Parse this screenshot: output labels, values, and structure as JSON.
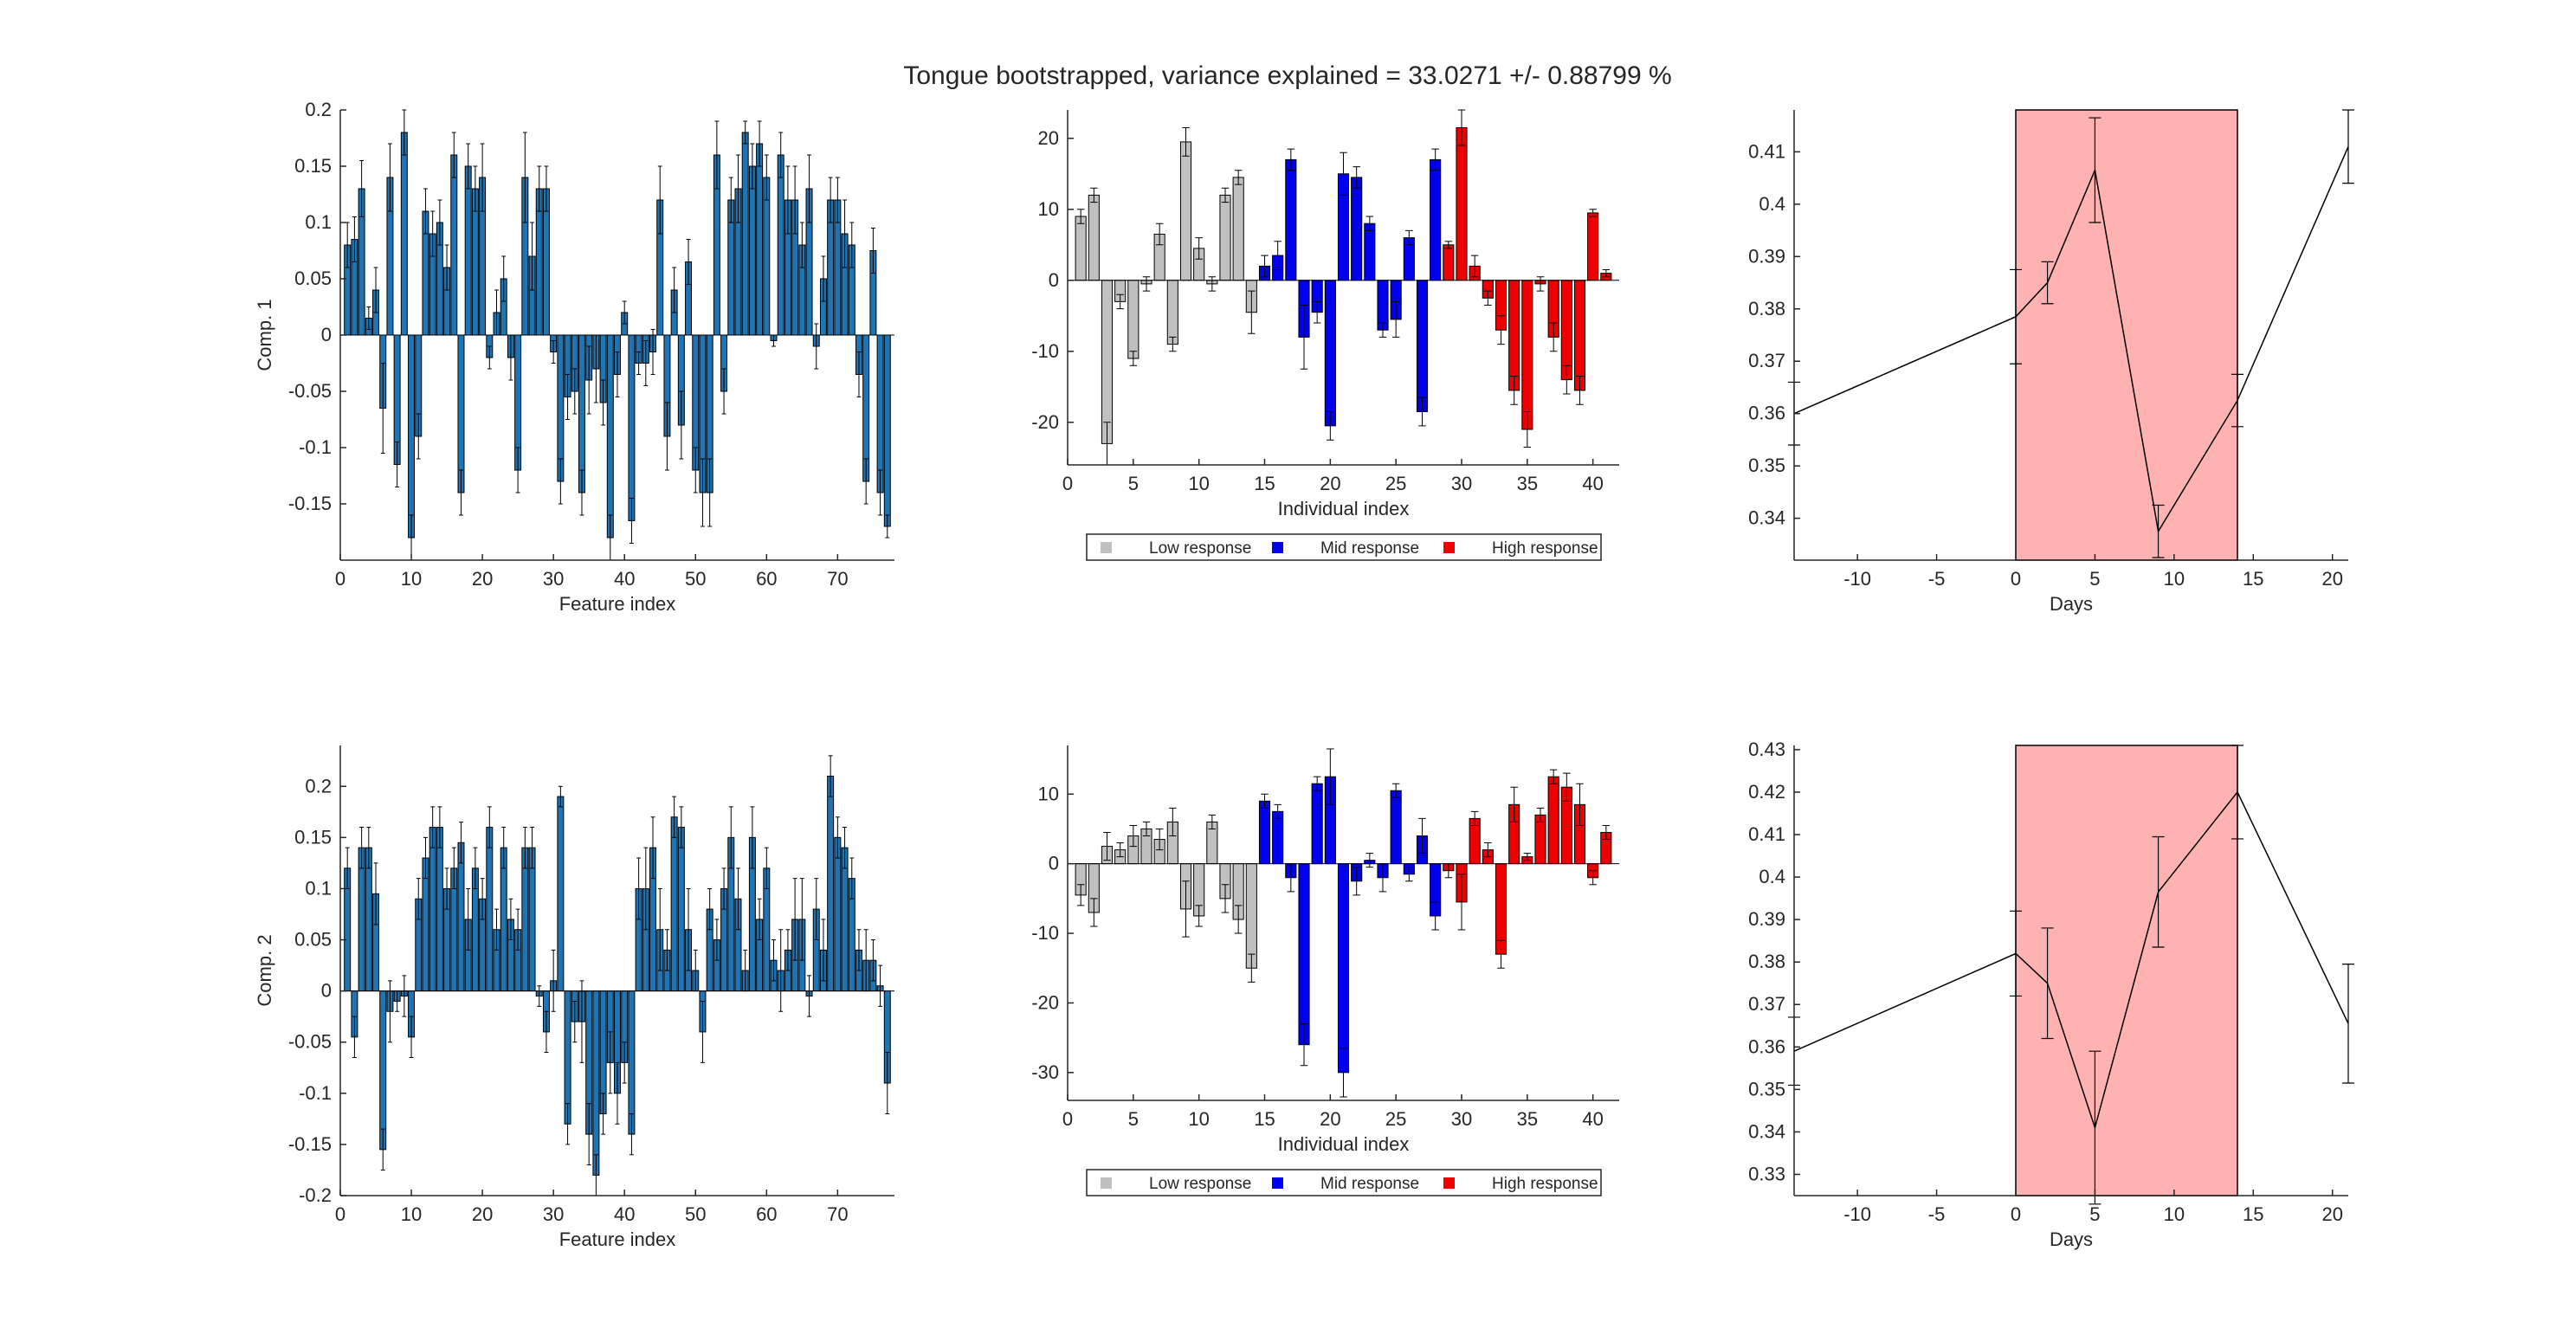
{
  "figure": {
    "title": "Tongue bootstrapped, variance explained = 33.0271 +/- 0.88799 %"
  },
  "colors": {
    "feature_bar": "#1f74b4",
    "low": "#c0c0c0",
    "mid": "#0000ee",
    "high": "#ee0000",
    "shade": "#ffb2b2"
  },
  "chart_data": [
    {
      "id": "features-comp1",
      "type": "bar",
      "xlabel": "Feature index",
      "ylabel": "Comp. 1",
      "xlim": [
        0,
        78
      ],
      "ylim": [
        -0.2,
        0.2
      ],
      "xticks": [
        0,
        10,
        20,
        30,
        40,
        50,
        60,
        70
      ],
      "xtick_labels": [
        "0",
        "10",
        "20",
        "30",
        "40",
        "50",
        "60",
        "70"
      ],
      "yticks": [
        -0.15,
        -0.1,
        -0.05,
        0,
        0.05,
        0.1,
        0.15,
        0.2
      ],
      "ytick_labels": [
        "-0.15",
        "-0.1",
        "-0.05",
        "0",
        "0.05",
        "0.1",
        "0.15",
        "0.2"
      ],
      "x": [
        1,
        2,
        3,
        4,
        5,
        6,
        7,
        8,
        9,
        10,
        11,
        12,
        13,
        14,
        15,
        16,
        17,
        18,
        19,
        20,
        21,
        22,
        23,
        24,
        25,
        26,
        27,
        28,
        29,
        30,
        31,
        32,
        33,
        34,
        35,
        36,
        37,
        38,
        39,
        40,
        41,
        42,
        43,
        44,
        45,
        46,
        47,
        48,
        49,
        50,
        51,
        52,
        53,
        54,
        55,
        56,
        57,
        58,
        59,
        60,
        61,
        62,
        63,
        64,
        65,
        66,
        67,
        68,
        69,
        70,
        71,
        72,
        73,
        74,
        75,
        76,
        77
      ],
      "values": [
        0.08,
        0.085,
        0.13,
        0.015,
        0.04,
        -0.065,
        0.14,
        -0.115,
        0.18,
        -0.18,
        -0.09,
        0.11,
        0.09,
        0.1,
        0.06,
        0.16,
        -0.14,
        0.15,
        0.13,
        0.14,
        -0.02,
        0.02,
        0.05,
        -0.02,
        -0.12,
        0.14,
        0.07,
        0.13,
        0.13,
        -0.015,
        -0.13,
        -0.055,
        -0.05,
        -0.14,
        -0.04,
        -0.03,
        -0.06,
        -0.18,
        -0.035,
        0.02,
        -0.165,
        -0.025,
        -0.025,
        -0.015,
        0.12,
        -0.09,
        0.04,
        -0.08,
        0.065,
        -0.12,
        -0.14,
        -0.14,
        0.16,
        -0.05,
        0.12,
        0.13,
        0.18,
        0.15,
        0.17,
        0.14,
        -0.005,
        0.16,
        0.12,
        0.12,
        0.08,
        0.13,
        -0.01,
        0.05,
        0.12,
        0.12,
        0.09,
        0.08,
        -0.035,
        -0.13,
        0.075,
        -0.14,
        -0.17
      ],
      "errors": [
        0.02,
        0.02,
        0.025,
        0.01,
        0.02,
        0.04,
        0.03,
        0.02,
        0.02,
        0.02,
        0.02,
        0.02,
        0.02,
        0.02,
        0.02,
        0.02,
        0.02,
        0.02,
        0.02,
        0.03,
        0.01,
        0.02,
        0.02,
        0.02,
        0.02,
        0.04,
        0.03,
        0.02,
        0.02,
        0.01,
        0.02,
        0.02,
        0.02,
        0.02,
        0.03,
        0.03,
        0.02,
        0.02,
        0.02,
        0.01,
        0.02,
        0.01,
        0.02,
        0.02,
        0.03,
        0.03,
        0.02,
        0.03,
        0.02,
        0.02,
        0.03,
        0.03,
        0.03,
        0.02,
        0.02,
        0.03,
        0.01,
        0.02,
        0.02,
        0.02,
        0.005,
        0.02,
        0.03,
        0.03,
        0.02,
        0.03,
        0.02,
        0.02,
        0.02,
        0.02,
        0.03,
        0.02,
        0.02,
        0.02,
        0.02,
        0.02,
        0.01
      ]
    },
    {
      "id": "individuals-comp1",
      "type": "bar",
      "xlabel": "Individual index",
      "ylabel": "",
      "xlim": [
        0,
        42
      ],
      "ylim": [
        -26,
        24
      ],
      "xticks": [
        0,
        5,
        10,
        15,
        20,
        25,
        30,
        35,
        40
      ],
      "xtick_labels": [
        "0",
        "5",
        "10",
        "15",
        "20",
        "25",
        "30",
        "35",
        "40"
      ],
      "yticks": [
        -20,
        -10,
        0,
        10,
        20
      ],
      "ytick_labels": [
        "-20",
        "-10",
        "0",
        "10",
        "20"
      ],
      "x": [
        1,
        2,
        3,
        4,
        5,
        6,
        7,
        8,
        9,
        10,
        11,
        12,
        13,
        14,
        15,
        16,
        17,
        18,
        19,
        20,
        21,
        22,
        23,
        24,
        25,
        26,
        27,
        28,
        29,
        30,
        31,
        32,
        33,
        34,
        35,
        36,
        37,
        38,
        39,
        40,
        41
      ],
      "values": [
        9,
        12,
        -23,
        -3,
        -11,
        -0.5,
        6.5,
        -9,
        19.5,
        4.5,
        -0.5,
        12,
        14.5,
        -4.5,
        2,
        3.5,
        17,
        -8,
        -4.5,
        -20.5,
        15,
        14.5,
        8,
        -7,
        -5.5,
        6,
        -18.5,
        17,
        5,
        21.5,
        2,
        -2.5,
        -7,
        -15.5,
        -21,
        -0.5,
        -8,
        -14,
        -15.5,
        9.5,
        1
      ],
      "errors": [
        1,
        1,
        3,
        1,
        1,
        1,
        1.5,
        1,
        2,
        1.5,
        1,
        1,
        1,
        3,
        1.5,
        2,
        1.5,
        4.5,
        1.5,
        2,
        3,
        1.5,
        1,
        1,
        2.5,
        1,
        2,
        1.5,
        0.5,
        2.5,
        1.5,
        1,
        2,
        2,
        2.5,
        1,
        2,
        2,
        2,
        0.5,
        0.5
      ],
      "groups": [
        "low",
        "low",
        "low",
        "low",
        "low",
        "low",
        "low",
        "low",
        "low",
        "low",
        "low",
        "low",
        "low",
        "low",
        "mid",
        "mid",
        "mid",
        "mid",
        "mid",
        "mid",
        "mid",
        "mid",
        "mid",
        "mid",
        "mid",
        "mid",
        "mid",
        "mid",
        "high",
        "high",
        "high",
        "high",
        "high",
        "high",
        "high",
        "high",
        "high",
        "high",
        "high",
        "high",
        "high"
      ],
      "legend": [
        "Low response",
        "Mid response",
        "High response"
      ]
    },
    {
      "id": "time-comp1",
      "type": "line",
      "xlabel": "Days",
      "ylabel": "",
      "xlim": [
        -14,
        21
      ],
      "ylim": [
        0.332,
        0.418
      ],
      "xticks": [
        -10,
        -5,
        0,
        5,
        10,
        15,
        20
      ],
      "xtick_labels": [
        "-10",
        "-5",
        "0",
        "5",
        "10",
        "15",
        "20"
      ],
      "yticks": [
        0.34,
        0.35,
        0.36,
        0.37,
        0.38,
        0.39,
        0.4,
        0.41
      ],
      "ytick_labels": [
        "0.34",
        "0.35",
        "0.36",
        "0.37",
        "0.38",
        "0.39",
        "0.4",
        "0.41"
      ],
      "x": [
        -14,
        0,
        2,
        5,
        9,
        14,
        21
      ],
      "y": [
        0.36,
        0.3785,
        0.385,
        0.4065,
        0.3375,
        0.3625,
        0.411
      ],
      "errors": [
        0.006,
        0.009,
        0.004,
        0.01,
        0.005,
        0.005,
        0.007
      ],
      "shade": [
        0,
        14
      ]
    },
    {
      "id": "features-comp2",
      "type": "bar",
      "xlabel": "Feature index",
      "ylabel": "Comp. 2",
      "xlim": [
        0,
        78
      ],
      "ylim": [
        -0.2,
        0.24
      ],
      "xticks": [
        0,
        10,
        20,
        30,
        40,
        50,
        60,
        70
      ],
      "xtick_labels": [
        "0",
        "10",
        "20",
        "30",
        "40",
        "50",
        "60",
        "70"
      ],
      "yticks": [
        -0.2,
        -0.15,
        -0.1,
        -0.05,
        0,
        0.05,
        0.1,
        0.15,
        0.2
      ],
      "ytick_labels": [
        "-0.2",
        "-0.15",
        "-0.1",
        "-0.05",
        "0",
        "0.05",
        "0.1",
        "0.15",
        "0.2"
      ],
      "x": [
        1,
        2,
        3,
        4,
        5,
        6,
        7,
        8,
        9,
        10,
        11,
        12,
        13,
        14,
        15,
        16,
        17,
        18,
        19,
        20,
        21,
        22,
        23,
        24,
        25,
        26,
        27,
        28,
        29,
        30,
        31,
        32,
        33,
        34,
        35,
        36,
        37,
        38,
        39,
        40,
        41,
        42,
        43,
        44,
        45,
        46,
        47,
        48,
        49,
        50,
        51,
        52,
        53,
        54,
        55,
        56,
        57,
        58,
        59,
        60,
        61,
        62,
        63,
        64,
        65,
        66,
        67,
        68,
        69,
        70,
        71,
        72,
        73,
        74,
        75,
        76,
        77
      ],
      "values": [
        0.12,
        -0.045,
        0.14,
        0.14,
        0.095,
        -0.155,
        -0.02,
        -0.01,
        -0.005,
        -0.045,
        0.09,
        0.13,
        0.16,
        0.16,
        0.1,
        0.12,
        0.145,
        0.07,
        0.12,
        0.09,
        0.16,
        0.06,
        0.14,
        0.07,
        0.06,
        0.14,
        0.14,
        -0.005,
        -0.04,
        0.01,
        0.19,
        -0.13,
        -0.03,
        -0.03,
        -0.14,
        -0.18,
        -0.12,
        -0.07,
        -0.1,
        -0.07,
        -0.14,
        0.1,
        0.1,
        0.14,
        0.06,
        0.04,
        0.17,
        0.16,
        0.06,
        0.02,
        -0.04,
        0.08,
        0.05,
        0.1,
        0.15,
        0.09,
        0.02,
        0.15,
        0.07,
        0.12,
        0.03,
        0.02,
        0.04,
        0.07,
        0.07,
        -0.005,
        0.08,
        0.04,
        0.21,
        0.15,
        0.14,
        0.11,
        0.04,
        0.03,
        0.03,
        0.005,
        -0.09
      ],
      "errors": [
        0.02,
        0.02,
        0.02,
        0.02,
        0.03,
        0.02,
        0.03,
        0.01,
        0.02,
        0.02,
        0.02,
        0.02,
        0.02,
        0.02,
        0.02,
        0.02,
        0.02,
        0.03,
        0.02,
        0.02,
        0.02,
        0.02,
        0.02,
        0.02,
        0.02,
        0.02,
        0.02,
        0.01,
        0.02,
        0.03,
        0.01,
        0.02,
        0.02,
        0.04,
        0.03,
        0.02,
        0.02,
        0.03,
        0.03,
        0.02,
        0.02,
        0.03,
        0.04,
        0.03,
        0.04,
        0.02,
        0.02,
        0.02,
        0.04,
        0.02,
        0.03,
        0.02,
        0.02,
        0.02,
        0.03,
        0.03,
        0.02,
        0.03,
        0.02,
        0.02,
        0.02,
        0.04,
        0.02,
        0.04,
        0.04,
        0.02,
        0.03,
        0.03,
        0.02,
        0.02,
        0.02,
        0.02,
        0.02,
        0.03,
        0.02,
        0.02,
        0.03
      ]
    },
    {
      "id": "individuals-comp2",
      "type": "bar",
      "xlabel": "Individual index",
      "ylabel": "",
      "xlim": [
        0,
        42
      ],
      "ylim": [
        -34,
        17
      ],
      "xticks": [
        0,
        5,
        10,
        15,
        20,
        25,
        30,
        35,
        40
      ],
      "xtick_labels": [
        "0",
        "5",
        "10",
        "15",
        "20",
        "25",
        "30",
        "35",
        "40"
      ],
      "yticks": [
        -30,
        -20,
        -10,
        0,
        10
      ],
      "ytick_labels": [
        "-30",
        "-20",
        "-10",
        "0",
        "10"
      ],
      "x": [
        1,
        2,
        3,
        4,
        5,
        6,
        7,
        8,
        9,
        10,
        11,
        12,
        13,
        14,
        15,
        16,
        17,
        18,
        19,
        20,
        21,
        22,
        23,
        24,
        25,
        26,
        27,
        28,
        29,
        30,
        31,
        32,
        33,
        34,
        35,
        36,
        37,
        38,
        39,
        40,
        41
      ],
      "values": [
        -4.5,
        -7,
        2.5,
        2,
        4,
        5,
        3.5,
        6,
        -6.5,
        -7.5,
        6,
        -5,
        -8,
        -15,
        9,
        7.5,
        -2,
        -26,
        11.5,
        12.5,
        -30,
        -2.5,
        0.5,
        -2,
        10.5,
        -1.5,
        4,
        -7.5,
        -1,
        -5.5,
        6.5,
        2,
        -13,
        8.5,
        1,
        7,
        12.5,
        11,
        8.5,
        -2,
        4.5
      ],
      "errors": [
        1.5,
        2,
        2,
        1,
        1.5,
        1,
        1.5,
        2,
        4,
        1.5,
        1,
        2,
        2,
        2,
        1,
        1,
        2,
        3,
        1,
        4,
        3.5,
        2,
        1,
        2,
        1,
        1,
        2.5,
        2,
        1,
        4,
        1,
        1,
        2,
        2.5,
        0.5,
        1,
        1,
        2,
        3,
        1,
        1
      ],
      "groups": [
        "low",
        "low",
        "low",
        "low",
        "low",
        "low",
        "low",
        "low",
        "low",
        "low",
        "low",
        "low",
        "low",
        "low",
        "mid",
        "mid",
        "mid",
        "mid",
        "mid",
        "mid",
        "mid",
        "mid",
        "mid",
        "mid",
        "mid",
        "mid",
        "mid",
        "mid",
        "high",
        "high",
        "high",
        "high",
        "high",
        "high",
        "high",
        "high",
        "high",
        "high",
        "high",
        "high",
        "high"
      ],
      "legend": [
        "Low response",
        "Mid response",
        "High response"
      ]
    },
    {
      "id": "time-comp2",
      "type": "line",
      "xlabel": "Days",
      "ylabel": "",
      "xlim": [
        -14,
        21
      ],
      "ylim": [
        0.325,
        0.431
      ],
      "xticks": [
        -10,
        -5,
        0,
        5,
        10,
        15,
        20
      ],
      "xtick_labels": [
        "-10",
        "-5",
        "0",
        "5",
        "10",
        "15",
        "20"
      ],
      "yticks": [
        0.33,
        0.34,
        0.35,
        0.36,
        0.37,
        0.38,
        0.39,
        0.4,
        0.41,
        0.42,
        0.43
      ],
      "ytick_labels": [
        "0.33",
        "0.34",
        "0.35",
        "0.36",
        "0.37",
        "0.38",
        "0.39",
        "0.4",
        "0.41",
        "0.42",
        "0.43"
      ],
      "x": [
        -14,
        0,
        2,
        5,
        9,
        14,
        21
      ],
      "y": [
        0.359,
        0.382,
        0.375,
        0.341,
        0.3965,
        0.42,
        0.3655
      ],
      "errors": [
        0.008,
        0.01,
        0.013,
        0.018,
        0.013,
        0.011,
        0.014
      ],
      "shade": [
        0,
        14
      ]
    }
  ]
}
